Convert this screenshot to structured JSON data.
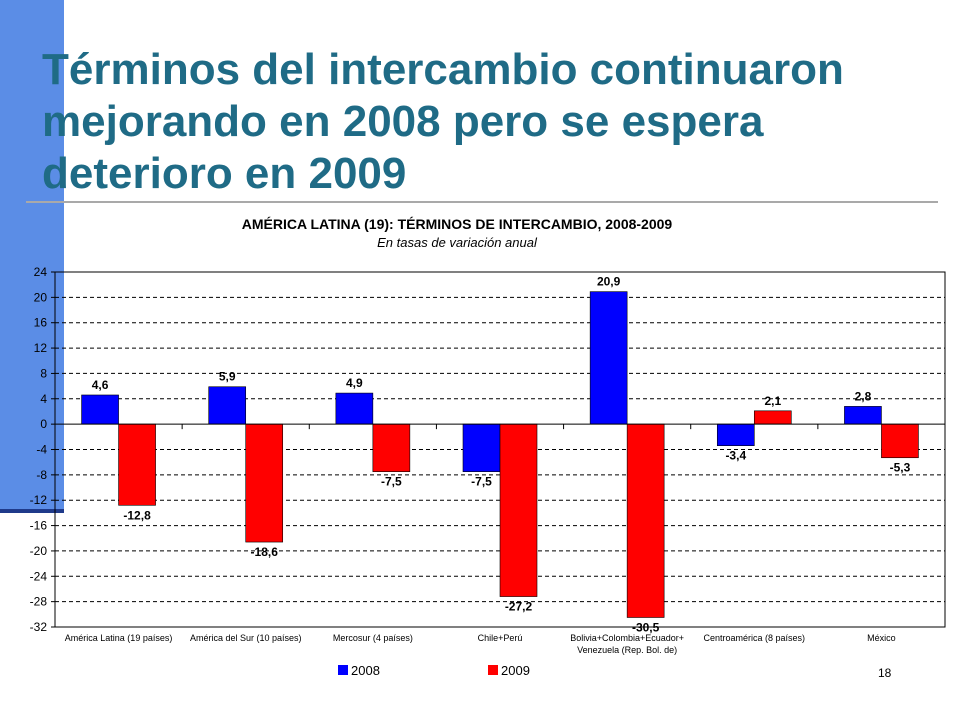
{
  "slide": {
    "title": "Términos del intercambio continuaron mejorando en 2008 pero se espera deterioro en 2009",
    "page_number": "18"
  },
  "colors": {
    "title": "#1f6b86",
    "accent_bar": "#5b8de6",
    "series_2008": "#0000ff",
    "series_2009": "#ff0000"
  },
  "chart_data": {
    "type": "bar",
    "title": "AMÉRICA LATINA (19): TÉRMINOS DE INTERCAMBIO, 2008-2009",
    "subtitle": "En tasas de variación anual",
    "categories": [
      "América Latina (19 países)",
      "América del Sur (10 países)",
      "Mercosur (4 países)",
      "Chile+Perú",
      "Bolivia+Colombia+Ecuador+ Venezuela (Rep. Bol. de)",
      "Centroamérica (8 países)",
      "México"
    ],
    "series": [
      {
        "name": "2008",
        "color": "#0000ff",
        "values": [
          4.6,
          5.9,
          4.9,
          -7.5,
          20.9,
          -3.4,
          2.8
        ],
        "labels": [
          "4,6",
          "5,9",
          "4,9",
          "-7,5",
          "20,9",
          "-3,4",
          "2,8"
        ]
      },
      {
        "name": "2009",
        "color": "#ff0000",
        "values": [
          -12.8,
          -18.6,
          -7.5,
          -27.2,
          -30.5,
          2.1,
          -5.3
        ],
        "labels": [
          "-12,8",
          "-18,6",
          "-7,5",
          "-27,2",
          "-30,5",
          "2,1",
          "-5,3"
        ]
      }
    ],
    "ylim": [
      -32,
      24
    ],
    "yticks": [
      24,
      20,
      16,
      12,
      8,
      4,
      0,
      -4,
      -8,
      -12,
      -16,
      -20,
      -24,
      -28,
      -32
    ],
    "grid": true,
    "legend_position": "bottom"
  }
}
